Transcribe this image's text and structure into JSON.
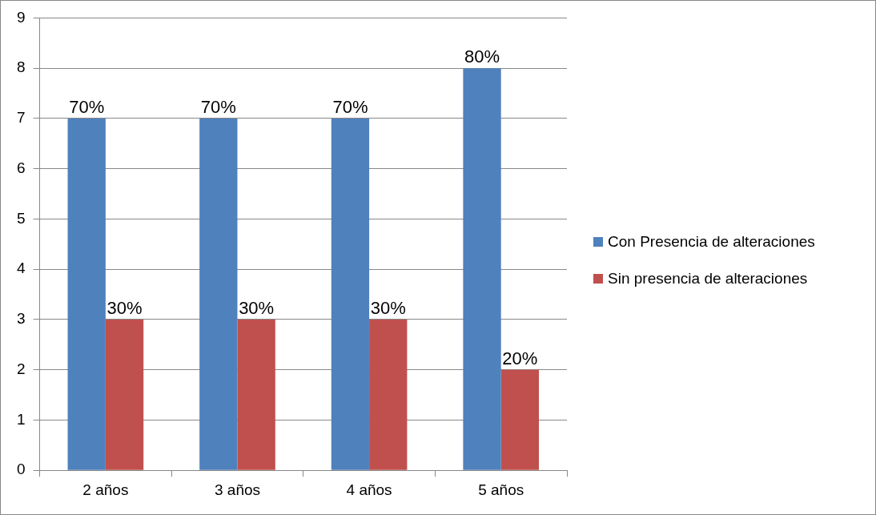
{
  "chart_data": {
    "type": "bar",
    "categories": [
      "2 años",
      "3 años",
      "4 años",
      "5 años"
    ],
    "series": [
      {
        "name": "Con Presencia de alteraciones",
        "color": "#4f81bd",
        "values": [
          7,
          7,
          7,
          8
        ]
      },
      {
        "name": "Sin presencia de alteraciones",
        "color": "#c0504d",
        "values": [
          3,
          3,
          3,
          2
        ]
      }
    ],
    "annotations": [
      {
        "text": "70%",
        "x": "2 años",
        "y": 7
      },
      {
        "text": "70%",
        "x": "3 años",
        "y": 7
      },
      {
        "text": "70%",
        "x": "4 años",
        "y": 7
      },
      {
        "text": "80%",
        "x": "5 años",
        "y": 8
      },
      {
        "text": "30%",
        "x": "2 años",
        "y": 3
      },
      {
        "text": "30%",
        "x": "3 años",
        "y": 3
      },
      {
        "text": "30%",
        "x": "4 años",
        "y": 3
      },
      {
        "text": "20%",
        "x": "5 años",
        "y": 2
      }
    ],
    "ylim": [
      0,
      9
    ],
    "yticks": [
      0,
      1,
      2,
      3,
      4,
      5,
      6,
      7,
      8,
      9
    ],
    "grid": "y",
    "legend": "right"
  }
}
